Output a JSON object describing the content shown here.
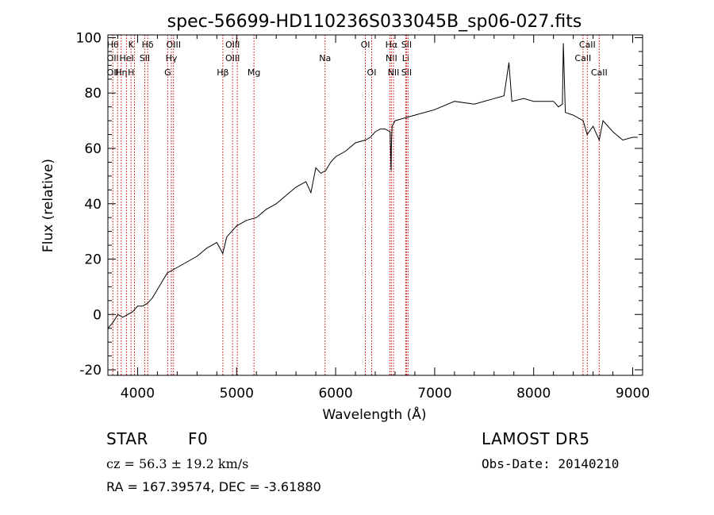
{
  "chart_data": {
    "type": "line",
    "title": "spec-56699-HD110236S033045B_sp06-027.fits",
    "xlabel": "Wavelength (Å)",
    "ylabel": "Flux (relative)",
    "xlim": [
      3700,
      9100
    ],
    "ylim": [
      -22,
      101
    ],
    "xticks": [
      4000,
      5000,
      6000,
      7000,
      8000,
      9000
    ],
    "yticks": [
      -20,
      0,
      20,
      40,
      60,
      80,
      100
    ],
    "line_color": "#000000",
    "marker_color": "#cc0000",
    "grid": false,
    "series": [
      {
        "x": [
          3700,
          3750,
          3800,
          3850,
          3900,
          3950,
          4000,
          4050,
          4100,
          4150,
          4200,
          4250,
          4300,
          4350,
          4400,
          4500,
          4600,
          4700,
          4800,
          4860,
          4900,
          5000,
          5100,
          5200,
          5300,
          5400,
          5500,
          5600,
          5700,
          5750,
          5800,
          5850,
          5900,
          5950,
          6000,
          6100,
          6200,
          6300,
          6350,
          6400,
          6450,
          6500,
          6550,
          6560,
          6563,
          6570,
          6600,
          6700,
          6800,
          7000,
          7200,
          7400,
          7600,
          7700,
          7750,
          7780,
          7900,
          8000,
          8100,
          8200,
          8250,
          8290,
          8300,
          8320,
          8400,
          8500,
          8540,
          8600,
          8662,
          8700,
          8800,
          8900,
          9000,
          9050
        ],
        "y": [
          -5,
          -3,
          0,
          -1,
          0,
          1,
          3,
          3,
          4,
          6,
          9,
          12,
          15,
          16,
          17,
          19,
          21,
          24,
          26,
          22,
          28,
          32,
          34,
          35,
          38,
          40,
          43,
          46,
          48,
          44,
          53,
          51,
          52,
          55,
          57,
          59,
          62,
          63,
          64,
          66,
          67,
          67,
          66,
          52,
          60,
          68,
          70,
          71,
          72,
          74,
          77,
          76,
          78,
          79,
          91,
          77,
          78,
          77,
          77,
          77,
          75,
          76,
          98,
          73,
          72,
          70,
          65,
          68,
          63,
          70,
          66,
          63,
          64,
          64
        ]
      }
    ],
    "line_markers": [
      {
        "x": 3750,
        "labels": [
          "Hθ",
          "OII",
          "OII"
        ]
      },
      {
        "x": 3798
      },
      {
        "x": 3835,
        "labels": [
          "",
          "",
          "Hη"
        ]
      },
      {
        "x": 3889,
        "labels": [
          "",
          "HeI",
          ""
        ]
      },
      {
        "x": 3934,
        "labels": [
          "K",
          "",
          "H"
        ]
      },
      {
        "x": 3969
      },
      {
        "x": 4072,
        "labels": [
          "",
          "SII",
          ""
        ]
      },
      {
        "x": 4102,
        "labels": [
          "Hδ",
          "",
          ""
        ]
      },
      {
        "x": 4304,
        "labels": [
          "",
          "",
          "G"
        ]
      },
      {
        "x": 4341,
        "labels": [
          "",
          "Hγ",
          ""
        ]
      },
      {
        "x": 4363,
        "labels": [
          "OIII",
          "",
          ""
        ]
      },
      {
        "x": 4861,
        "labels": [
          "",
          "",
          "Hβ"
        ]
      },
      {
        "x": 4959,
        "labels": [
          "OIII",
          "OIII",
          ""
        ]
      },
      {
        "x": 5007
      },
      {
        "x": 5175,
        "labels": [
          "",
          "",
          "Mg"
        ]
      },
      {
        "x": 5893,
        "labels": [
          "",
          "Na",
          ""
        ]
      },
      {
        "x": 6300,
        "labels": [
          "OI",
          "",
          ""
        ]
      },
      {
        "x": 6364,
        "labels": [
          "",
          "",
          "OI"
        ]
      },
      {
        "x": 6548
      },
      {
        "x": 6563,
        "labels": [
          "Hα",
          "NII",
          ""
        ]
      },
      {
        "x": 6584,
        "labels": [
          "",
          "",
          "NII"
        ]
      },
      {
        "x": 6707,
        "labels": [
          "",
          "Li",
          ""
        ]
      },
      {
        "x": 6716,
        "labels": [
          "SII",
          "",
          "SII"
        ]
      },
      {
        "x": 6731
      },
      {
        "x": 8498,
        "labels": [
          "",
          "CaII",
          ""
        ]
      },
      {
        "x": 8542,
        "labels": [
          "CaII",
          "",
          ""
        ]
      },
      {
        "x": 8662,
        "labels": [
          "",
          "",
          "CaII"
        ]
      }
    ]
  },
  "info": {
    "object_type": "STAR",
    "subclass": "F0",
    "survey": "LAMOST DR5",
    "redshift": "cz = 56.3 ± 19.2 km/s",
    "obs_date": "Obs-Date: 20140210",
    "coords": "RA = 167.39574, DEC =  -3.61880"
  }
}
